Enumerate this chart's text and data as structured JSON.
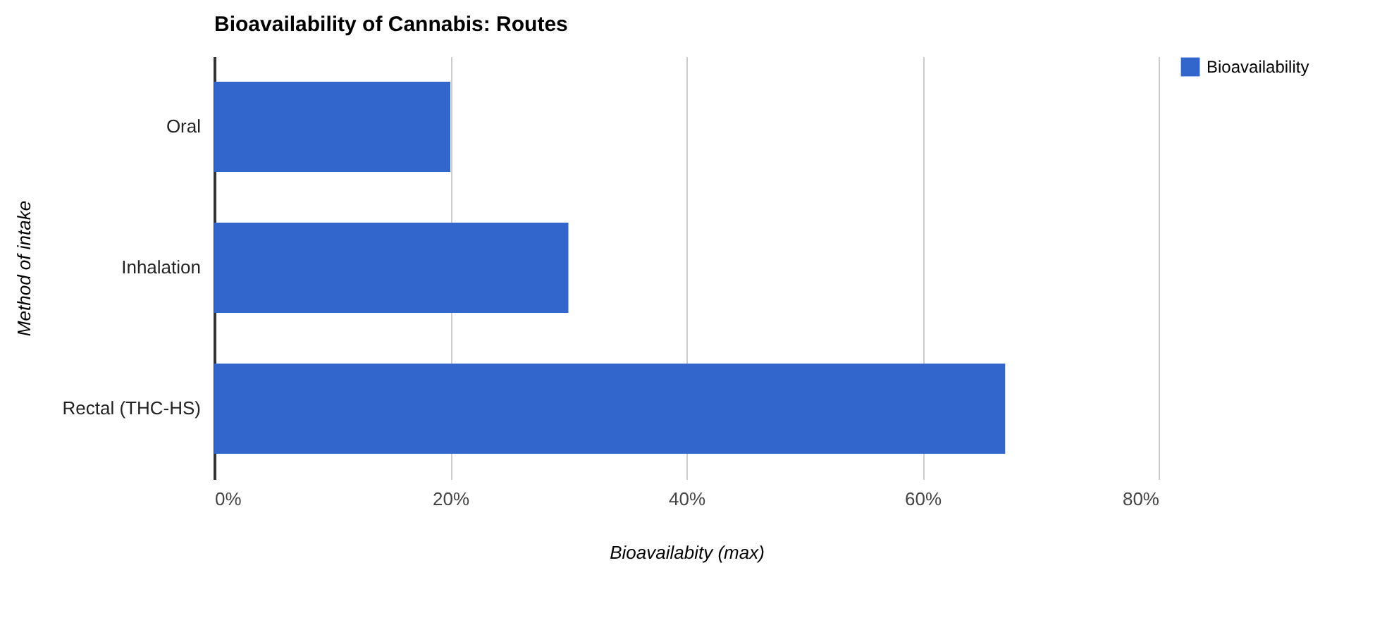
{
  "chart_data": {
    "type": "bar",
    "orientation": "horizontal",
    "title": "Bioavailability of Cannabis: Routes",
    "xlabel": "Bioavailabity (max)",
    "ylabel": "Method of intake",
    "categories": [
      "Oral",
      "Inhalation",
      "Rectal (THC-HS)"
    ],
    "series": [
      {
        "name": "Bioavailability",
        "color": "#3366cc",
        "values": [
          20,
          30,
          67
        ]
      }
    ],
    "xlim": [
      0,
      80
    ],
    "xticks": [
      {
        "value": 0,
        "label": "0%"
      },
      {
        "value": 20,
        "label": "20%"
      },
      {
        "value": 40,
        "label": "40%"
      },
      {
        "value": 60,
        "label": "60%"
      },
      {
        "value": 80,
        "label": "80%"
      }
    ],
    "grid": "x",
    "legend": "top right"
  }
}
